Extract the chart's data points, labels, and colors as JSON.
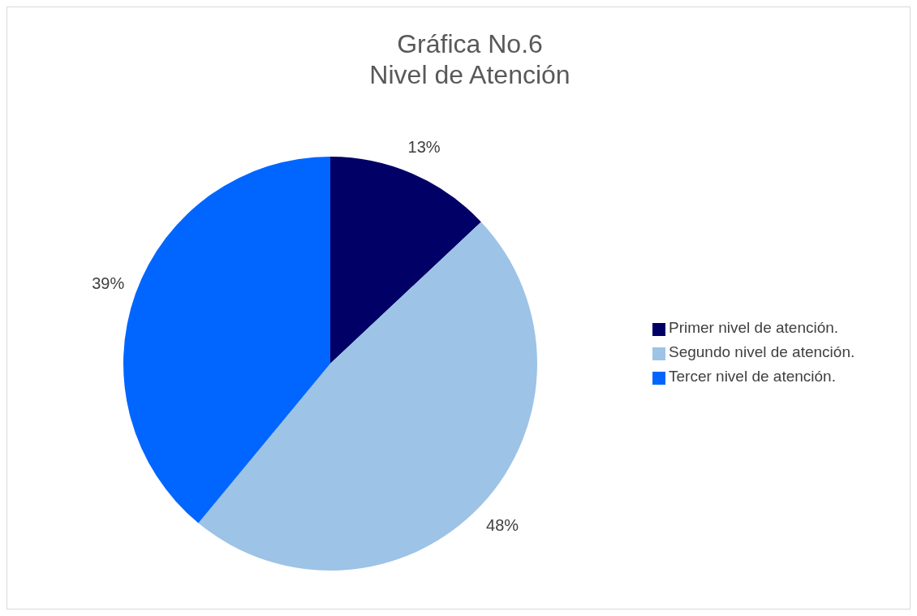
{
  "chart_data": {
    "type": "pie",
    "title": "Gráfica No.6",
    "subtitle": "Nivel de Atención",
    "categories": [
      "Primer nivel de atención.",
      "Segundo nivel de atención.",
      "Tercer nivel de atención."
    ],
    "values": [
      13,
      48,
      39
    ],
    "colors": [
      "#000066",
      "#9dc3e6",
      "#0066ff"
    ],
    "value_labels": [
      "13%",
      "48%",
      "39%"
    ],
    "legend": "right"
  }
}
